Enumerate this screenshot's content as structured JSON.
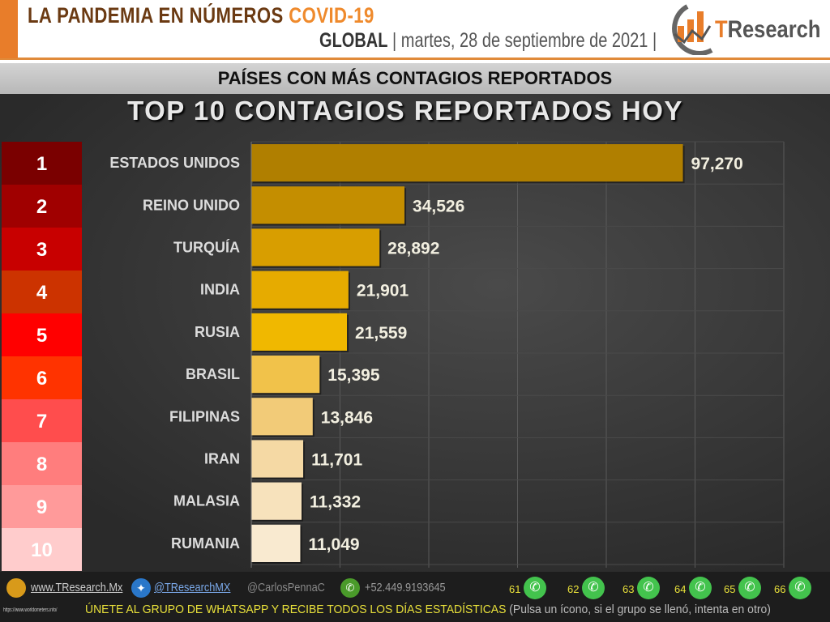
{
  "header": {
    "title": "LA PANDEMIA EN NÚMEROS",
    "title_highlight": "COVID-19",
    "scope": "GLOBAL",
    "date": "martes, 28 de septiembre de 2021",
    "brand": "TResearch",
    "brand_accent": "T",
    "brand_rest": "Research"
  },
  "banner": "PAÍSES CON MÁS CONTAGIOS REPORTADOS",
  "chart_data": {
    "type": "bar",
    "orientation": "horizontal",
    "title": "TOP 10 CONTAGIOS REPORTADOS HOY",
    "ranks": [
      "1",
      "2",
      "3",
      "4",
      "5",
      "6",
      "7",
      "8",
      "9",
      "10"
    ],
    "categories": [
      "ESTADOS UNIDOS",
      "REINO UNIDO",
      "TURQUÍA",
      "INDIA",
      "RUSIA",
      "BRASIL",
      "FILIPINAS",
      "IRAN",
      "MALASIA",
      "RUMANIA"
    ],
    "values": [
      97270,
      34526,
      28892,
      21901,
      21559,
      15395,
      13846,
      11701,
      11332,
      11049
    ],
    "labels": [
      "97,270",
      "34,526",
      "28,892",
      "21,901",
      "21,559",
      "15,395",
      "13,846",
      "11,701",
      "11,332",
      "11,049"
    ],
    "xlim": [
      0,
      120000
    ],
    "grid": true,
    "bar_colors": [
      "#b07f00",
      "#c48e00",
      "#d89e00",
      "#e6ab00",
      "#f0b800",
      "#f1c24a",
      "#f2cb78",
      "#f5d9a4",
      "#f7e2bc",
      "#f9ead0"
    ],
    "rank_colors": [
      "#7a0000",
      "#a00000",
      "#c80000",
      "#cc3300",
      "#ff0000",
      "#ff3300",
      "#ff4d4d",
      "#ff7d7d",
      "#ff9a9a",
      "#ffcccc"
    ]
  },
  "footer": {
    "website": "www.TResearch.Mx",
    "twitter": "@TResearchMX",
    "twitter2": "@CarlosPennaC",
    "phone": "+52.449.9193645",
    "groups": [
      "61",
      "62",
      "63",
      "64",
      "65",
      "66"
    ],
    "source": "https://www.worldometers.info/",
    "cta": "ÚNETE AL GRUPO DE WHATSAPP Y RECIBE TODOS LOS DÍAS ESTADÍSTICAS",
    "note": "(Pulsa un ícono, si el grupo se llenó, intenta en otro)"
  }
}
